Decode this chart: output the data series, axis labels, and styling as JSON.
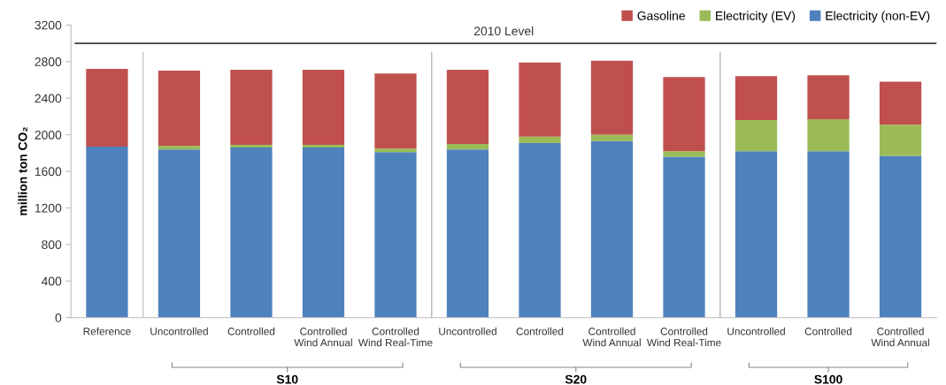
{
  "chart_data": {
    "type": "bar",
    "stacked": true,
    "ylabel": "million ton CO₂",
    "categories": [
      "Reference",
      "Uncontrolled",
      "Controlled",
      "Controlled\nWind Annual",
      "Controlled\nWind Real-Time",
      "Uncontrolled",
      "Controlled",
      "Controlled\nWind Annual",
      "Controlled\nWind Real-Time",
      "Uncontrolled",
      "Controlled",
      "Controlled\nWind Annual"
    ],
    "series": [
      {
        "name": "Electricity (non-EV)",
        "color": "#4f81bd",
        "values": [
          1870,
          1840,
          1860,
          1860,
          1810,
          1840,
          1910,
          1930,
          1760,
          1820,
          1820,
          1770
        ]
      },
      {
        "name": "Electricity (EV)",
        "color": "#9bbb59",
        "values": [
          0,
          40,
          30,
          30,
          40,
          60,
          70,
          70,
          60,
          340,
          350,
          340
        ]
      },
      {
        "name": "Gasoline",
        "color": "#c0504d",
        "values": [
          850,
          820,
          820,
          820,
          820,
          810,
          810,
          810,
          810,
          480,
          480,
          470
        ]
      }
    ],
    "ylim": [
      0,
      3200
    ],
    "yticks": [
      0,
      400,
      800,
      1200,
      1600,
      2000,
      2400,
      2800,
      3200
    ],
    "ref_lines": [
      {
        "axis": "y",
        "value": 3000,
        "label": "2010 Level",
        "color": "#404040"
      }
    ],
    "annotations": [
      "S10",
      "S20",
      "S100"
    ],
    "legend": "top right",
    "grid": false
  }
}
